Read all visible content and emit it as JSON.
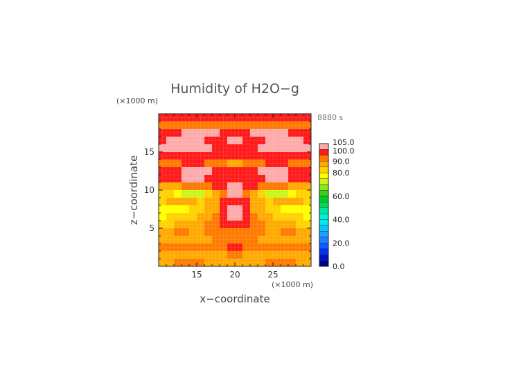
{
  "chart_data": {
    "type": "heatmap",
    "title": "Humidity of H2O−g",
    "xlabel": "x−coordinate",
    "ylabel": "z−coordinate",
    "x_unit": "(×1000 m)",
    "y_unit": "(×1000 m)",
    "time_label": "8880 s",
    "xlim": [
      10,
      30
    ],
    "ylim": [
      0,
      20
    ],
    "x_ticks": [
      "15",
      "20",
      "25"
    ],
    "y_ticks": [
      "5",
      "10",
      "15"
    ],
    "colorbar": {
      "min": 0,
      "max": 105,
      "tick_labels": [
        "105.0",
        "100.0",
        "90.0",
        "80.0",
        "60.0",
        "40.0",
        "20.0",
        "0.0"
      ],
      "tick_values": [
        105,
        100,
        90,
        80,
        60,
        40,
        20,
        0
      ],
      "levels": [
        {
          "from": 0,
          "to": 5,
          "color": "#00008f"
        },
        {
          "from": 5,
          "to": 10,
          "color": "#0011c8"
        },
        {
          "from": 10,
          "to": 15,
          "color": "#0033ee"
        },
        {
          "from": 15,
          "to": 20,
          "color": "#0b5cff"
        },
        {
          "from": 20,
          "to": 25,
          "color": "#1e7fff"
        },
        {
          "from": 25,
          "to": 30,
          "color": "#1aa2ff"
        },
        {
          "from": 30,
          "to": 35,
          "color": "#00c8ff"
        },
        {
          "from": 35,
          "to": 40,
          "color": "#00e8f0"
        },
        {
          "from": 40,
          "to": 45,
          "color": "#00f0d8"
        },
        {
          "from": 45,
          "to": 50,
          "color": "#00e8a0"
        },
        {
          "from": 50,
          "to": 55,
          "color": "#00dc58"
        },
        {
          "from": 55,
          "to": 60,
          "color": "#00cc22"
        },
        {
          "from": 60,
          "to": 65,
          "color": "#3ccf1a"
        },
        {
          "from": 65,
          "to": 70,
          "color": "#8ae61a"
        },
        {
          "from": 70,
          "to": 75,
          "color": "#ccf51a"
        },
        {
          "from": 75,
          "to": 80,
          "color": "#ffff00"
        },
        {
          "from": 80,
          "to": 85,
          "color": "#ffd200"
        },
        {
          "from": 85,
          "to": 90,
          "color": "#ffaa00"
        },
        {
          "from": 90,
          "to": 95,
          "color": "#ff7a00"
        },
        {
          "from": 95,
          "to": 100,
          "color": "#ff1a1a"
        },
        {
          "from": 100,
          "to": 105,
          "color": "#ffaaaa"
        }
      ],
      "overflow_color": "#ffffff"
    },
    "rows_top_to_bottom_description": "humidity field sampled on 20 x 20 grid (x from 10 to 30, z from 20 down to 0)",
    "grid": {
      "nx": 20,
      "nz": 20,
      "x_centers": [
        10.5,
        11.5,
        12.5,
        13.5,
        14.5,
        15.5,
        16.5,
        17.5,
        18.5,
        19.5,
        20.5,
        21.5,
        22.5,
        23.5,
        24.5,
        25.5,
        26.5,
        27.5,
        28.5,
        29.5
      ],
      "z_centers_top_to_bottom": [
        19.5,
        18.5,
        17.5,
        16.5,
        15.5,
        14.5,
        13.5,
        12.5,
        11.5,
        10.5,
        9.5,
        8.5,
        7.5,
        6.5,
        5.5,
        4.5,
        3.5,
        2.5,
        1.5,
        0.5
      ],
      "values": [
        [
          97,
          98,
          98,
          98,
          97,
          97,
          97,
          97,
          97,
          97,
          97,
          97,
          97,
          97,
          97,
          97,
          97,
          98,
          98,
          97
        ],
        [
          92,
          93,
          94,
          94,
          93,
          92,
          92,
          92,
          93,
          93,
          93,
          93,
          92,
          92,
          92,
          93,
          94,
          94,
          93,
          92
        ],
        [
          97,
          98,
          99,
          100,
          102,
          103,
          103,
          102,
          98,
          97,
          97,
          98,
          102,
          103,
          103,
          102,
          100,
          99,
          98,
          97
        ],
        [
          99,
          101,
          102,
          102,
          101,
          100,
          99,
          98,
          99,
          103,
          103,
          99,
          98,
          99,
          100,
          101,
          102,
          102,
          101,
          99
        ],
        [
          101,
          102,
          103,
          103,
          102,
          101,
          100,
          99,
          99,
          99,
          99,
          99,
          99,
          100,
          101,
          102,
          103,
          103,
          102,
          101
        ],
        [
          96,
          97,
          98,
          99,
          98,
          97,
          96,
          96,
          96,
          96,
          96,
          96,
          96,
          96,
          97,
          98,
          99,
          98,
          97,
          96
        ],
        [
          93,
          93,
          94,
          95,
          96,
          95,
          94,
          94,
          93,
          86,
          86,
          93,
          94,
          94,
          95,
          96,
          95,
          94,
          93,
          93
        ],
        [
          97,
          98,
          99,
          101,
          103,
          103,
          101,
          98,
          97,
          97,
          97,
          97,
          98,
          101,
          103,
          103,
          101,
          99,
          98,
          97
        ],
        [
          97,
          98,
          99,
          102,
          103,
          102,
          99,
          97,
          97,
          97,
          97,
          97,
          97,
          99,
          102,
          103,
          102,
          99,
          98,
          97
        ],
        [
          88,
          88,
          89,
          90,
          91,
          92,
          93,
          95,
          97,
          101,
          101,
          97,
          95,
          93,
          92,
          91,
          90,
          89,
          88,
          88
        ],
        [
          80,
          80,
          78,
          74,
          70,
          72,
          80,
          88,
          94,
          102,
          102,
          94,
          88,
          80,
          72,
          70,
          74,
          78,
          80,
          80
        ],
        [
          84,
          85,
          86,
          86,
          85,
          84,
          86,
          88,
          97,
          98,
          98,
          97,
          88,
          86,
          84,
          85,
          86,
          86,
          85,
          84
        ],
        [
          76,
          77,
          78,
          79,
          80,
          82,
          85,
          88,
          97,
          102,
          102,
          97,
          88,
          85,
          82,
          80,
          79,
          78,
          77,
          76
        ],
        [
          79,
          80,
          81,
          82,
          83,
          85,
          88,
          92,
          96,
          102,
          102,
          96,
          92,
          88,
          85,
          83,
          82,
          81,
          80,
          79
        ],
        [
          83,
          84,
          85,
          86,
          87,
          88,
          90,
          94,
          96,
          97,
          97,
          96,
          94,
          90,
          88,
          87,
          86,
          85,
          84,
          83
        ],
        [
          88,
          89,
          90,
          90,
          89,
          88,
          90,
          92,
          93,
          93,
          93,
          93,
          92,
          90,
          88,
          89,
          90,
          90,
          89,
          88
        ],
        [
          85,
          86,
          87,
          88,
          88,
          88,
          89,
          90,
          91,
          91,
          91,
          91,
          90,
          89,
          88,
          88,
          88,
          87,
          86,
          85
        ],
        [
          90,
          90,
          91,
          92,
          92,
          91,
          91,
          92,
          93,
          96,
          96,
          93,
          92,
          91,
          91,
          92,
          92,
          91,
          90,
          90
        ],
        [
          86,
          87,
          88,
          89,
          89,
          88,
          88,
          88,
          89,
          91,
          91,
          89,
          88,
          88,
          88,
          89,
          89,
          88,
          87,
          86
        ],
        [
          88,
          89,
          90,
          91,
          91,
          90,
          89,
          89,
          89,
          89,
          89,
          89,
          89,
          89,
          90,
          91,
          91,
          90,
          89,
          88
        ]
      ]
    }
  }
}
